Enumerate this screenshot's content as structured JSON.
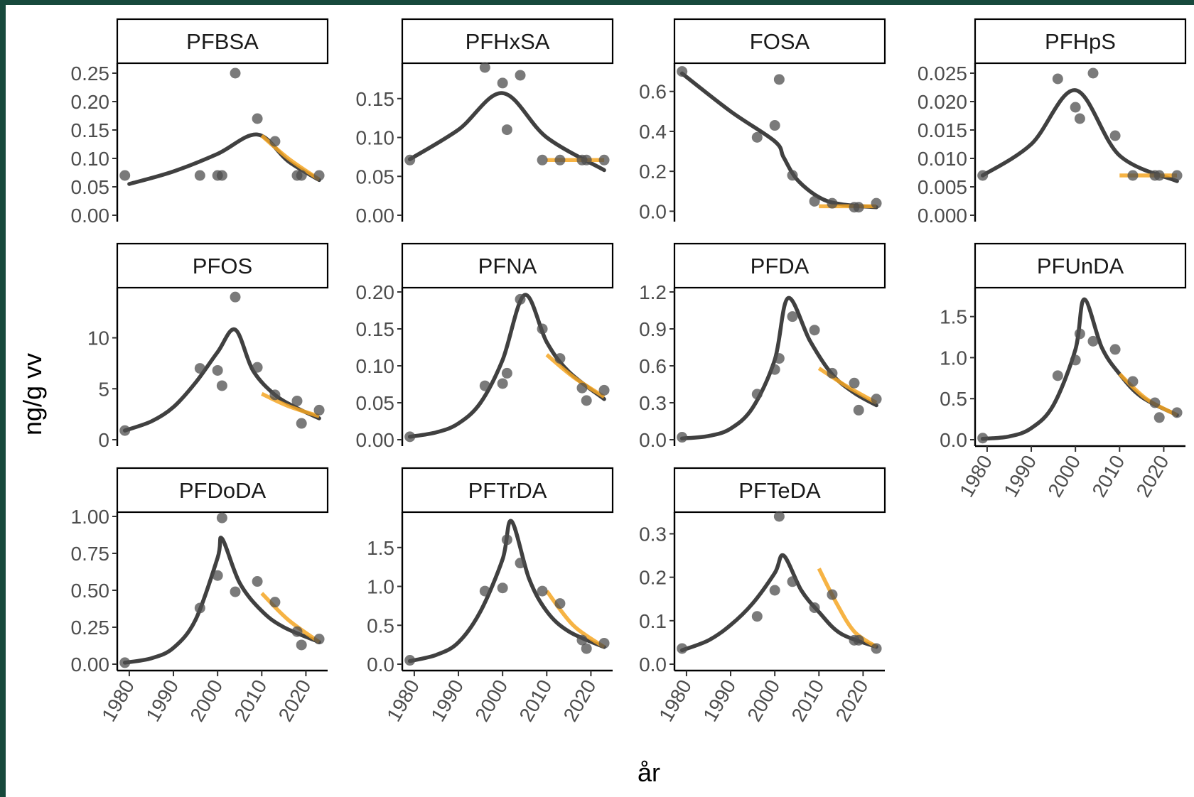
{
  "chart_data": {
    "type": "scatter",
    "xlabel": "år",
    "ylabel": "ng/g vv",
    "xlim": [
      1977.6,
      2024.6
    ],
    "xticks": [
      "1980",
      "1990",
      "2000",
      "2010",
      "2020"
    ],
    "colors": {
      "points": "#4d4d4d",
      "trend": "#404040",
      "recent": "#f5a623"
    },
    "panels": [
      {
        "name": "PFBSA",
        "ylim": [
          0,
          0.26
        ],
        "yticks": [
          "0.00",
          "0.05",
          "0.10",
          "0.15",
          "0.20",
          "0.25"
        ],
        "points": [
          [
            1979,
            0.07
          ],
          [
            1996,
            0.07
          ],
          [
            2000,
            0.07
          ],
          [
            2001,
            0.07
          ],
          [
            2004,
            0.25
          ],
          [
            2009,
            0.17
          ],
          [
            2013,
            0.13
          ],
          [
            2018,
            0.07
          ],
          [
            2019,
            0.07
          ],
          [
            2023,
            0.07
          ]
        ],
        "trend": [
          [
            1980,
            0.055
          ],
          [
            1990,
            0.077
          ],
          [
            2000,
            0.108
          ],
          [
            2009,
            0.142
          ],
          [
            2016,
            0.095
          ],
          [
            2023,
            0.062
          ]
        ],
        "recent": [
          [
            2010,
            0.14
          ],
          [
            2016,
            0.1
          ],
          [
            2023,
            0.063
          ]
        ]
      },
      {
        "name": "PFHxSA",
        "ylim": [
          0,
          0.19
        ],
        "yticks": [
          "0.00",
          "0.05",
          "0.10",
          "0.15"
        ],
        "points": [
          [
            1979,
            0.071
          ],
          [
            1996,
            0.19
          ],
          [
            2000,
            0.17
          ],
          [
            2001,
            0.11
          ],
          [
            2004,
            0.18
          ],
          [
            2009,
            0.071
          ],
          [
            2013,
            0.071
          ],
          [
            2018,
            0.071
          ],
          [
            2019,
            0.071
          ],
          [
            2023,
            0.071
          ]
        ],
        "trend": [
          [
            1979,
            0.072
          ],
          [
            1990,
            0.11
          ],
          [
            2000,
            0.157
          ],
          [
            2010,
            0.1
          ],
          [
            2023,
            0.058
          ]
        ],
        "recent": [
          [
            2010,
            0.071
          ],
          [
            2023,
            0.071
          ]
        ]
      },
      {
        "name": "FOSA",
        "ylim": [
          -0.02,
          0.72
        ],
        "yticks": [
          "0.0",
          "0.2",
          "0.4",
          "0.6"
        ],
        "points": [
          [
            1979,
            0.7
          ],
          [
            1996,
            0.37
          ],
          [
            2000,
            0.43
          ],
          [
            2001,
            0.66
          ],
          [
            2004,
            0.18
          ],
          [
            2009,
            0.05
          ],
          [
            2013,
            0.04
          ],
          [
            2018,
            0.02
          ],
          [
            2019,
            0.02
          ],
          [
            2023,
            0.04
          ]
        ],
        "trend": [
          [
            1979,
            0.69
          ],
          [
            1990,
            0.5
          ],
          [
            2000,
            0.35
          ],
          [
            2002,
            0.27
          ],
          [
            2005,
            0.16
          ],
          [
            2010,
            0.07
          ],
          [
            2015,
            0.035
          ],
          [
            2023,
            0.02
          ]
        ],
        "recent": [
          [
            2010,
            0.025
          ],
          [
            2023,
            0.025
          ]
        ]
      },
      {
        "name": "PFHpS",
        "ylim": [
          0,
          0.026
        ],
        "yticks": [
          "0.000",
          "0.005",
          "0.010",
          "0.015",
          "0.020",
          "0.025"
        ],
        "points": [
          [
            1979,
            0.007
          ],
          [
            1996,
            0.024
          ],
          [
            2000,
            0.019
          ],
          [
            2001,
            0.017
          ],
          [
            2004,
            0.025
          ],
          [
            2009,
            0.014
          ],
          [
            2013,
            0.007
          ],
          [
            2018,
            0.007
          ],
          [
            2019,
            0.007
          ],
          [
            2023,
            0.007
          ]
        ],
        "trend": [
          [
            1979,
            0.007
          ],
          [
            1990,
            0.0125
          ],
          [
            2000,
            0.022
          ],
          [
            2010,
            0.0105
          ],
          [
            2023,
            0.006
          ]
        ],
        "recent": [
          [
            2010,
            0.007
          ],
          [
            2023,
            0.007
          ]
        ]
      },
      {
        "name": "PFOS",
        "ylim": [
          0,
          14.5
        ],
        "yticks": [
          "0",
          "5",
          "10"
        ],
        "points": [
          [
            1979,
            0.9
          ],
          [
            1996,
            7.0
          ],
          [
            2000,
            6.8
          ],
          [
            2001,
            5.3
          ],
          [
            2004,
            14.0
          ],
          [
            2009,
            7.1
          ],
          [
            2013,
            4.4
          ],
          [
            2018,
            3.8
          ],
          [
            2019,
            1.6
          ],
          [
            2023,
            2.9
          ]
        ],
        "trend": [
          [
            1979,
            0.9
          ],
          [
            1985,
            1.8
          ],
          [
            1990,
            3.2
          ],
          [
            1995,
            5.6
          ],
          [
            2000,
            8.6
          ],
          [
            2004,
            10.8
          ],
          [
            2008,
            6.8
          ],
          [
            2013,
            4.4
          ],
          [
            2018,
            3.1
          ],
          [
            2023,
            2.1
          ]
        ],
        "recent": [
          [
            2010,
            4.5
          ],
          [
            2016,
            3.3
          ],
          [
            2023,
            2.3
          ]
        ]
      },
      {
        "name": "PFNA",
        "ylim": [
          0,
          0.2
        ],
        "yticks": [
          "0.00",
          "0.05",
          "0.10",
          "0.15",
          "0.20"
        ],
        "points": [
          [
            1979,
            0.004
          ],
          [
            1996,
            0.073
          ],
          [
            2000,
            0.076
          ],
          [
            2001,
            0.09
          ],
          [
            2004,
            0.19
          ],
          [
            2009,
            0.15
          ],
          [
            2013,
            0.11
          ],
          [
            2018,
            0.07
          ],
          [
            2019,
            0.053
          ],
          [
            2023,
            0.067
          ]
        ],
        "trend": [
          [
            1979,
            0.004
          ],
          [
            1985,
            0.01
          ],
          [
            1990,
            0.022
          ],
          [
            1995,
            0.05
          ],
          [
            2000,
            0.108
          ],
          [
            2005,
            0.196
          ],
          [
            2010,
            0.132
          ],
          [
            2015,
            0.092
          ],
          [
            2023,
            0.055
          ]
        ],
        "recent": [
          [
            2010,
            0.115
          ],
          [
            2016,
            0.085
          ],
          [
            2023,
            0.058
          ]
        ]
      },
      {
        "name": "PFDA",
        "ylim": [
          0,
          1.2
        ],
        "yticks": [
          "0.0",
          "0.3",
          "0.6",
          "0.9",
          "1.2"
        ],
        "points": [
          [
            1979,
            0.02
          ],
          [
            1996,
            0.37
          ],
          [
            2000,
            0.57
          ],
          [
            2001,
            0.66
          ],
          [
            2004,
            1.0
          ],
          [
            2009,
            0.89
          ],
          [
            2013,
            0.54
          ],
          [
            2018,
            0.46
          ],
          [
            2019,
            0.24
          ],
          [
            2023,
            0.33
          ]
        ],
        "trend": [
          [
            1979,
            0.01
          ],
          [
            1985,
            0.03
          ],
          [
            1990,
            0.09
          ],
          [
            1995,
            0.26
          ],
          [
            2000,
            0.65
          ],
          [
            2003,
            1.15
          ],
          [
            2008,
            0.8
          ],
          [
            2013,
            0.53
          ],
          [
            2018,
            0.38
          ],
          [
            2023,
            0.28
          ]
        ],
        "recent": [
          [
            2010,
            0.58
          ],
          [
            2016,
            0.44
          ],
          [
            2023,
            0.3
          ]
        ]
      },
      {
        "name": "PFUnDA",
        "ylim": [
          0,
          1.8
        ],
        "yticks": [
          "0.0",
          "0.5",
          "1.0",
          "1.5"
        ],
        "points": [
          [
            1979,
            0.02
          ],
          [
            1996,
            0.78
          ],
          [
            2000,
            0.97
          ],
          [
            2001,
            1.29
          ],
          [
            2004,
            1.2
          ],
          [
            2009,
            1.1
          ],
          [
            2013,
            0.71
          ],
          [
            2018,
            0.45
          ],
          [
            2019,
            0.27
          ],
          [
            2023,
            0.33
          ]
        ],
        "trend": [
          [
            1979,
            0.01
          ],
          [
            1985,
            0.04
          ],
          [
            1990,
            0.14
          ],
          [
            1995,
            0.42
          ],
          [
            2000,
            1.1
          ],
          [
            2002,
            1.71
          ],
          [
            2006,
            1.12
          ],
          [
            2010,
            0.8
          ],
          [
            2015,
            0.52
          ],
          [
            2023,
            0.3
          ]
        ],
        "recent": [
          [
            2010,
            0.8
          ],
          [
            2016,
            0.5
          ],
          [
            2023,
            0.3
          ]
        ]
      },
      {
        "name": "PFDoDA",
        "ylim": [
          0,
          1.0
        ],
        "yticks": [
          "0.00",
          "0.25",
          "0.50",
          "0.75",
          "1.00"
        ],
        "points": [
          [
            1979,
            0.01
          ],
          [
            1996,
            0.38
          ],
          [
            2000,
            0.6
          ],
          [
            2001,
            0.99
          ],
          [
            2004,
            0.49
          ],
          [
            2009,
            0.56
          ],
          [
            2013,
            0.42
          ],
          [
            2018,
            0.22
          ],
          [
            2019,
            0.13
          ],
          [
            2023,
            0.17
          ]
        ],
        "trend": [
          [
            1979,
            0.01
          ],
          [
            1985,
            0.04
          ],
          [
            1990,
            0.11
          ],
          [
            1995,
            0.3
          ],
          [
            2000,
            0.72
          ],
          [
            2001,
            0.85
          ],
          [
            2005,
            0.55
          ],
          [
            2010,
            0.36
          ],
          [
            2015,
            0.25
          ],
          [
            2023,
            0.15
          ]
        ],
        "recent": [
          [
            2010,
            0.48
          ],
          [
            2016,
            0.3
          ],
          [
            2023,
            0.15
          ]
        ]
      },
      {
        "name": "PFTrDA",
        "ylim": [
          0,
          1.9
        ],
        "yticks": [
          "0.0",
          "0.5",
          "1.0",
          "1.5"
        ],
        "points": [
          [
            1979,
            0.05
          ],
          [
            1996,
            0.94
          ],
          [
            2000,
            0.98
          ],
          [
            2001,
            1.6
          ],
          [
            2004,
            1.3
          ],
          [
            2009,
            0.94
          ],
          [
            2013,
            0.78
          ],
          [
            2018,
            0.31
          ],
          [
            2019,
            0.2
          ],
          [
            2023,
            0.27
          ]
        ],
        "trend": [
          [
            1979,
            0.04
          ],
          [
            1985,
            0.12
          ],
          [
            1990,
            0.28
          ],
          [
            1995,
            0.68
          ],
          [
            2000,
            1.35
          ],
          [
            2002,
            1.84
          ],
          [
            2006,
            1.1
          ],
          [
            2010,
            0.68
          ],
          [
            2015,
            0.42
          ],
          [
            2023,
            0.22
          ]
        ],
        "recent": [
          [
            2010,
            0.94
          ],
          [
            2016,
            0.5
          ],
          [
            2023,
            0.22
          ]
        ]
      },
      {
        "name": "PFTeDA",
        "ylim": [
          0,
          0.34
        ],
        "yticks": [
          "0.0",
          "0.1",
          "0.2",
          "0.3"
        ],
        "points": [
          [
            1979,
            0.036
          ],
          [
            1996,
            0.11
          ],
          [
            2000,
            0.17
          ],
          [
            2001,
            0.34
          ],
          [
            2004,
            0.19
          ],
          [
            2009,
            0.13
          ],
          [
            2013,
            0.16
          ],
          [
            2018,
            0.055
          ],
          [
            2019,
            0.055
          ],
          [
            2023,
            0.036
          ]
        ],
        "trend": [
          [
            1979,
            0.032
          ],
          [
            1985,
            0.055
          ],
          [
            1990,
            0.09
          ],
          [
            1995,
            0.14
          ],
          [
            2000,
            0.21
          ],
          [
            2002,
            0.25
          ],
          [
            2006,
            0.17
          ],
          [
            2010,
            0.12
          ],
          [
            2015,
            0.07
          ],
          [
            2023,
            0.04
          ]
        ],
        "recent": [
          [
            2010,
            0.22
          ],
          [
            2014,
            0.14
          ],
          [
            2018,
            0.075
          ],
          [
            2023,
            0.04
          ]
        ]
      }
    ]
  }
}
